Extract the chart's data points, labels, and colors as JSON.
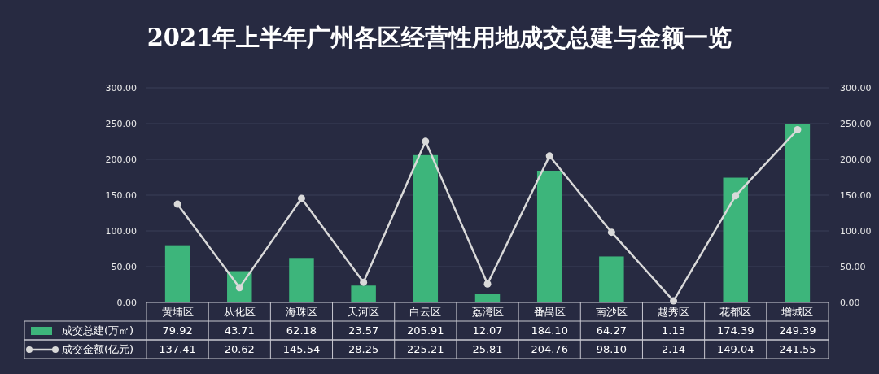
{
  "chart_data": {
    "type": "bar",
    "title": "2021年上半年广州各区经营性用地成交总建与金额一览",
    "categories": [
      "黄埔区",
      "从化区",
      "海珠区",
      "天河区",
      "白云区",
      "荔湾区",
      "番禺区",
      "南沙区",
      "越秀区",
      "花都区",
      "增城区"
    ],
    "series": [
      {
        "name": "成交总建(万㎡)",
        "color": "#3db57b",
        "values": [
          79.92,
          43.71,
          62.18,
          23.57,
          205.91,
          12.07,
          184.1,
          64.27,
          1.13,
          174.39,
          249.39
        ],
        "value_labels": [
          "79.92",
          "43.71",
          "62.18",
          "23.57",
          "205.91",
          "12.07",
          "184.10",
          "64.27",
          "1.13",
          "174.39",
          "249.39"
        ]
      },
      {
        "name": "成交金额(亿元)",
        "type": "line",
        "axis": "y2",
        "color": "#d9d9d9",
        "marker": "circle",
        "values": [
          137.41,
          20.62,
          145.54,
          28.25,
          225.21,
          25.81,
          204.76,
          98.1,
          2.14,
          149.04,
          241.55
        ],
        "value_labels": [
          "137.41",
          "20.62",
          "145.54",
          "28.25",
          "225.21",
          "25.81",
          "204.76",
          "98.10",
          "2.14",
          "149.04",
          "241.55"
        ]
      }
    ],
    "ylim": [
      0,
      300
    ],
    "yticks": [
      {
        "value": 0,
        "label": "0.00"
      },
      {
        "value": 50,
        "label": "50.00"
      },
      {
        "value": 100,
        "label": "100.00"
      },
      {
        "value": 150,
        "label": "150.00"
      },
      {
        "value": 200,
        "label": "200.00"
      },
      {
        "value": 250,
        "label": "250.00"
      },
      {
        "value": 300,
        "label": "300.00"
      }
    ],
    "y2lim": [
      0,
      300
    ],
    "y2ticks": [
      {
        "value": 0,
        "label": "0.00"
      },
      {
        "value": 50,
        "label": "50.00"
      },
      {
        "value": 100,
        "label": "100.00"
      },
      {
        "value": 150,
        "label": "150.00"
      },
      {
        "value": 200,
        "label": "200.00"
      },
      {
        "value": 250,
        "label": "250.00"
      },
      {
        "value": 300,
        "label": "300.00"
      }
    ],
    "grid": "y",
    "legend": "bottom left"
  }
}
